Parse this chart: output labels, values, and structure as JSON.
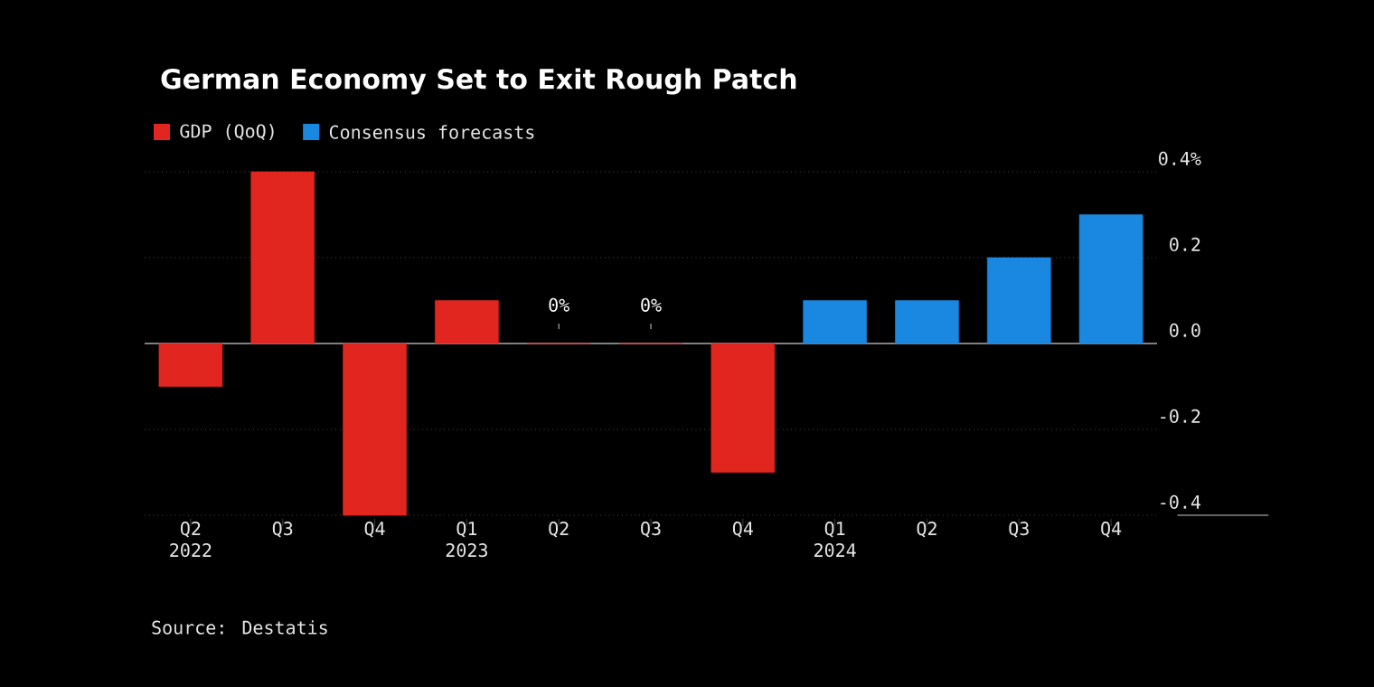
{
  "chart_data": {
    "type": "bar",
    "title": "German Economy Set to Exit Rough Patch",
    "categories": [
      "Q2 2022",
      "Q3",
      "Q4",
      "Q1 2023",
      "Q2",
      "Q3",
      "Q4",
      "Q1 2024",
      "Q2",
      "Q3",
      "Q4"
    ],
    "series": [
      {
        "name": "GDP (QoQ)",
        "color": "#e0261f",
        "values": [
          -0.1,
          0.4,
          -0.4,
          0.1,
          0,
          0,
          -0.3,
          null,
          null,
          null,
          null
        ],
        "value_labels": [
          null,
          null,
          null,
          null,
          "0%",
          "0%",
          null,
          null,
          null,
          null,
          null
        ]
      },
      {
        "name": "Consensus forecasts",
        "color": "#1a88e0",
        "values": [
          null,
          null,
          null,
          null,
          null,
          null,
          null,
          0.1,
          0.1,
          0.2,
          0.3
        ]
      }
    ],
    "ylim": [
      -0.4,
      0.4
    ],
    "yticks": [
      {
        "value": 0.4,
        "label": "0.4%"
      },
      0.2,
      {
        "value": 0,
        "label": "0.0"
      },
      -0.2,
      -0.4
    ],
    "grid": "y",
    "legend": "top left",
    "annotations": [
      "Source: Destatis"
    ]
  }
}
